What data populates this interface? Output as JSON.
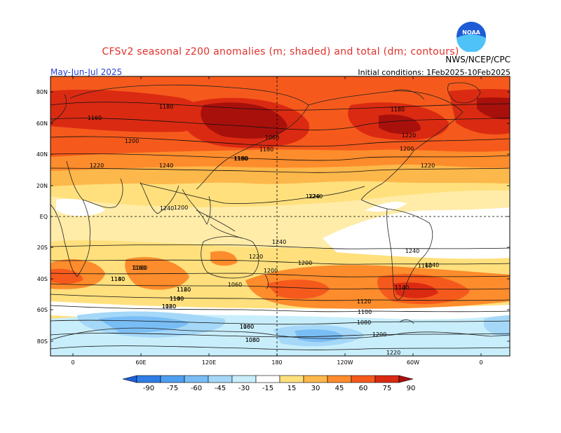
{
  "title": "CFSv2 seasonal z200 anomalies (m; shaded) and total (dm; contours)",
  "agency": "NWS/NCEP/CPC",
  "period": "May-Jun-Jul 2025",
  "initial_conditions": "Initial conditions: 1Feb2025-10Feb2025",
  "logo_text": "NOAA",
  "map": {
    "lat_ticks": [
      "80N",
      "60N",
      "40N",
      "20N",
      "EQ",
      "20S",
      "40S",
      "60S",
      "80S"
    ],
    "lon_ticks": [
      "0",
      "60E",
      "120E",
      "180",
      "120W",
      "60W",
      "0"
    ],
    "contour_labels": [
      "1160",
      "1180",
      "1200",
      "1220",
      "1240",
      "1240",
      "1240",
      "1240",
      "1220",
      "1200",
      "1180",
      "1160",
      "1140",
      "1120",
      "1100",
      "1080",
      "1060",
      "1080",
      "1060",
      "1180",
      "1180",
      "1200",
      "1220",
      "1220",
      "1200",
      "1180",
      "1160",
      "1140",
      "1120",
      "1100",
      "1080",
      "1200",
      "1220",
      "1240",
      "1240",
      "1220",
      "1200",
      "1180",
      "1160",
      "1140",
      "1120",
      "1100",
      "1080",
      "1060",
      "1080"
    ]
  },
  "colorbar": {
    "labels": [
      "-90",
      "-75",
      "-60",
      "-45",
      "-30",
      "-15",
      "15",
      "30",
      "45",
      "60",
      "75",
      "90"
    ],
    "colors": [
      "#1f5fd8",
      "#2f7ee8",
      "#4f9ff0",
      "#79bdf5",
      "#a5d8f8",
      "#c9eefb",
      "#ffffff",
      "#ffe07d",
      "#fdb84b",
      "#fd8c2c",
      "#f55a1c",
      "#db2a12",
      "#a8100c"
    ]
  }
}
